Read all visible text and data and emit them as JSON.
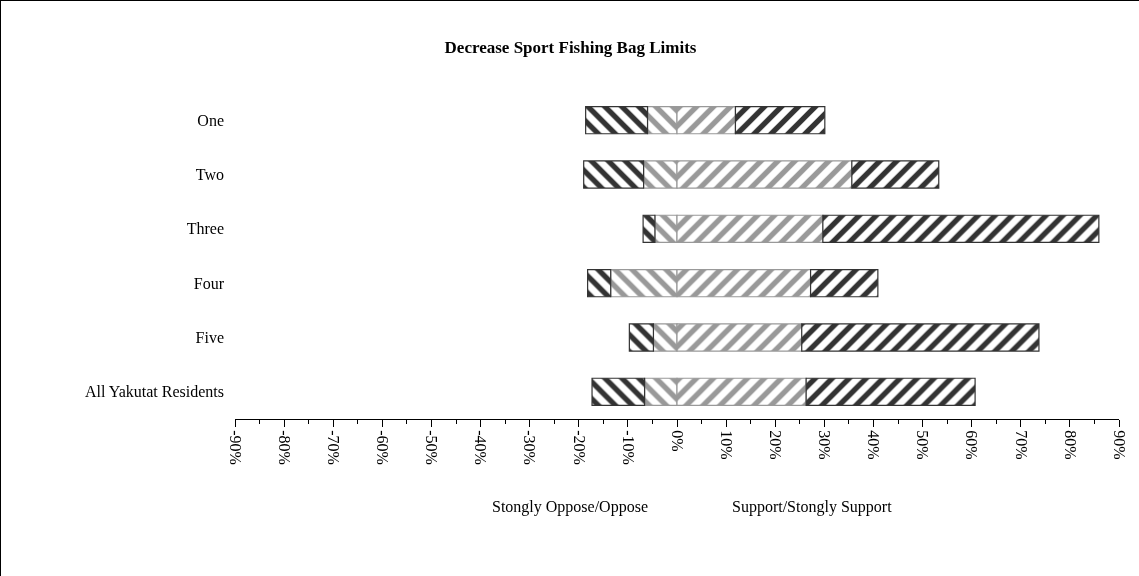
{
  "chart_data": {
    "type": "bar",
    "orientation": "horizontal",
    "stacked": true,
    "title": "Decrease Sport Fishing Bag Limits",
    "categories": [
      "One",
      "Two",
      "Three",
      "Four",
      "Five",
      "All Yakutat Residents"
    ],
    "series": [
      {
        "color": "#999999",
        "values": [
          -6.0,
          -6.8,
          -4.5,
          -13.5,
          -4.8,
          -6.6
        ]
      },
      {
        "color": "#333333",
        "values": [
          -12.6,
          -12.2,
          -2.4,
          -4.7,
          -4.9,
          -10.7
        ]
      },
      {
        "color": "#999999",
        "values": [
          11.9,
          35.6,
          29.7,
          27.2,
          25.4,
          26.3
        ]
      },
      {
        "color": "#333333",
        "values": [
          18.2,
          17.7,
          56.2,
          13.7,
          48.3,
          34.4
        ]
      }
    ],
    "xlim": [
      -90,
      90
    ],
    "xticks": [
      {
        "value": -90,
        "label": "-90%"
      },
      {
        "value": -80,
        "label": "-80%"
      },
      {
        "value": -70,
        "label": "-70%"
      },
      {
        "value": -60,
        "label": "-60%"
      },
      {
        "value": -50,
        "label": "-50%"
      },
      {
        "value": -40,
        "label": "-40%"
      },
      {
        "value": -30,
        "label": "-30%"
      },
      {
        "value": -20,
        "label": "-20%"
      },
      {
        "value": -10,
        "label": "-10%"
      },
      {
        "value": 0,
        "label": "0%"
      },
      {
        "value": 10,
        "label": "10%"
      },
      {
        "value": 20,
        "label": "20%"
      },
      {
        "value": 30,
        "label": "30%"
      },
      {
        "value": 40,
        "label": "40%"
      },
      {
        "value": 50,
        "label": "50%"
      },
      {
        "value": 60,
        "label": "60%"
      },
      {
        "value": 70,
        "label": "70%"
      },
      {
        "value": 80,
        "label": "80%"
      },
      {
        "value": 90,
        "label": "90%"
      }
    ],
    "annotations": [
      "Stongly Oppose/Oppose",
      "Support/Stongly Support"
    ],
    "grid": false
  }
}
